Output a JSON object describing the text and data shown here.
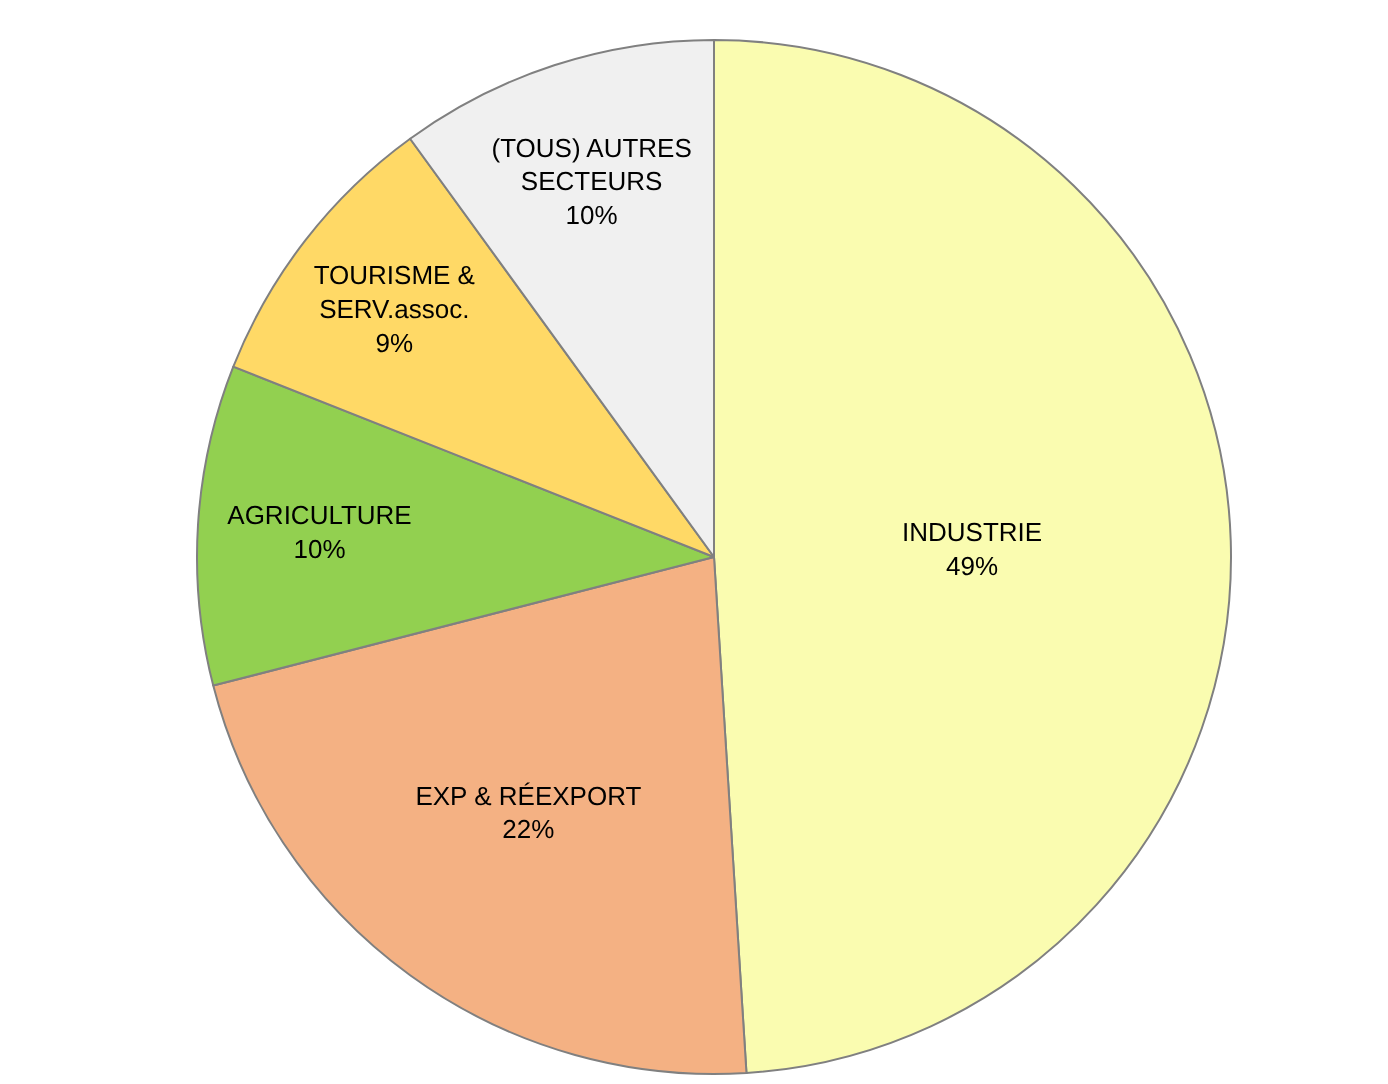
{
  "chart_data": {
    "type": "pie",
    "categories": [
      "INDUSTRIE",
      "EXP & RÉEXPORT",
      "AGRICULTURE",
      "TOURISME &\nSERV.assoc.",
      "(TOUS) AUTRES\nSECTEURS"
    ],
    "values": [
      49,
      22,
      10,
      9,
      10
    ],
    "value_labels": [
      "49%",
      "22%",
      "10%",
      "9%",
      "10%"
    ],
    "colors": [
      "#fafcb0",
      "#f4b183",
      "#92d050",
      "#ffd966",
      "#f0f0f0"
    ],
    "legend": false
  }
}
